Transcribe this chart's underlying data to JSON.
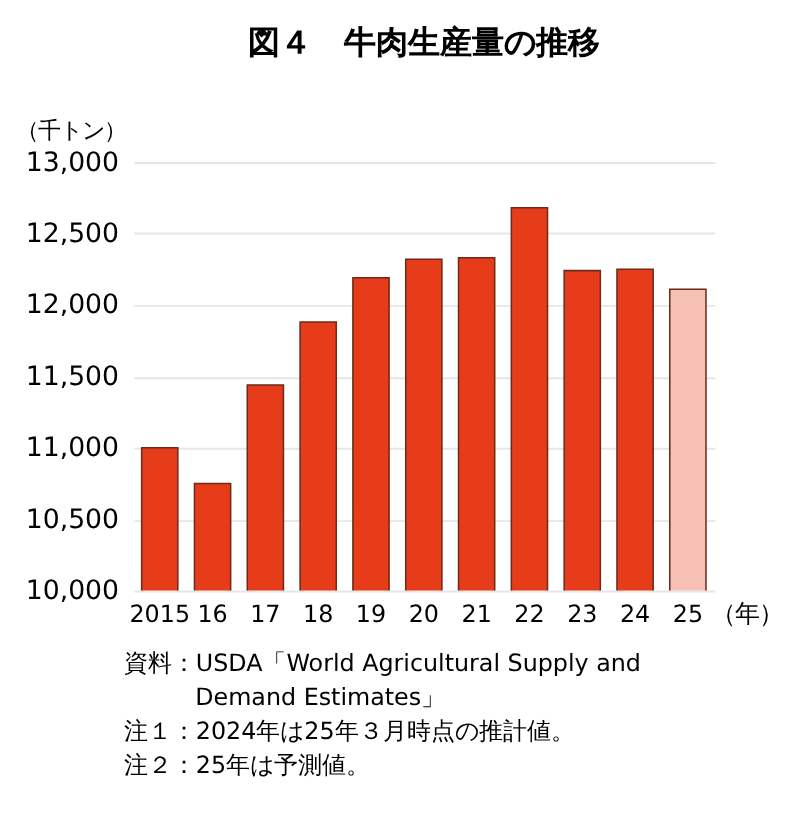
{
  "chart_data": {
    "type": "bar",
    "title": "図４　牛肉生産量の推移",
    "ylabel": "（千トン）",
    "xlabel": "（年）",
    "categories": [
      "2015",
      "16",
      "17",
      "18",
      "19",
      "20",
      "21",
      "22",
      "23",
      "24",
      "25"
    ],
    "values": [
      11000,
      10750,
      11440,
      11880,
      12190,
      12320,
      12330,
      12680,
      12240,
      12250,
      12110
    ],
    "colors": [
      "#e63c1a",
      "#e63c1a",
      "#e63c1a",
      "#e63c1a",
      "#e63c1a",
      "#e63c1a",
      "#e63c1a",
      "#e63c1a",
      "#e63c1a",
      "#e63c1a",
      "#f6c0b4"
    ],
    "ylim": [
      10000,
      13000
    ],
    "yticks": [
      {
        "value": 10000,
        "label": "10,000"
      },
      {
        "value": 10500,
        "label": "10,500"
      },
      {
        "value": 11000,
        "label": "11,000"
      },
      {
        "value": 11500,
        "label": "11,500"
      },
      {
        "value": 12000,
        "label": "12,000"
      },
      {
        "value": 12500,
        "label": "12,500"
      },
      {
        "value": 13000,
        "label": "13,000"
      }
    ],
    "grid": "y",
    "legend": false,
    "annotations": [
      "資料：USDA「World Agricultural Supply and Demand Estimates」",
      "注１：2024年は25年３月時点の推計値。",
      "注２：25年は予測値。"
    ]
  }
}
